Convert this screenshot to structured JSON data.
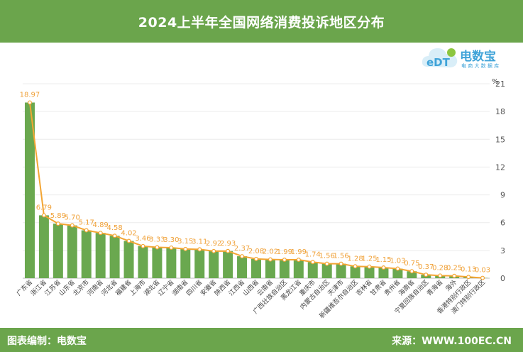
{
  "header": {
    "title": "2024上半年全国网络消费投诉地区分布"
  },
  "footer": {
    "left": "图表编制：电数宝",
    "right": "来源：WWW.100EC.CN"
  },
  "logo": {
    "brand": "电数宝",
    "tagline": "电 商 大 数 据 库",
    "mark": "eDT"
  },
  "colors": {
    "bar": "#6aa84f",
    "line": "#f3a533",
    "label": "#f0a23a",
    "header_bg": "#6ba54c",
    "axis_text": "#555555"
  },
  "chart_data": {
    "type": "bar",
    "unit": "%",
    "ylim": [
      0,
      21
    ],
    "yticks": [
      0,
      3,
      6,
      9,
      12,
      15,
      18,
      21
    ],
    "categories": [
      "广东省",
      "浙江省",
      "江苏省",
      "山东省",
      "北京市",
      "河南省",
      "河北省",
      "福建省",
      "上海市",
      "湖北省",
      "辽宁省",
      "湖南省",
      "四川省",
      "安徽省",
      "陕西省",
      "江西省",
      "山西省",
      "云南省",
      "广西壮族自治区",
      "黑龙江省",
      "重庆市",
      "内蒙古自治区",
      "天津市",
      "新疆维吾尔自治区",
      "吉林省",
      "甘肃省",
      "贵州省",
      "海南省",
      "宁夏回族自治区",
      "青海省",
      "海外",
      "香港特别行政区",
      "澳门特别行政区"
    ],
    "values": [
      18.97,
      6.79,
      5.89,
      5.7,
      5.17,
      4.89,
      4.58,
      4.02,
      3.46,
      3.33,
      3.3,
      3.15,
      3.11,
      2.92,
      2.93,
      2.37,
      2.08,
      2.02,
      1.99,
      1.99,
      1.74,
      1.56,
      1.56,
      1.28,
      1.25,
      1.15,
      1.03,
      0.75,
      0.37,
      0.28,
      0.25,
      0.13,
      0.03
    ],
    "labels": [
      "18.97",
      "6.79",
      "5.89",
      "5.70",
      "5.17",
      "4.89",
      "4.58",
      "4.02",
      "3.46",
      "3.33",
      "3.30",
      "3.15",
      "3.11",
      "2.92",
      "2.93",
      "2.37",
      "2.08",
      "2.02",
      "1.99",
      "1.99",
      "1.74",
      "1.56",
      "1.56",
      "1.28",
      "1.25",
      "1.15",
      "1.03",
      "0.75",
      "0.37",
      "0.28",
      "0.25",
      "0.13",
      "0.03"
    ]
  }
}
